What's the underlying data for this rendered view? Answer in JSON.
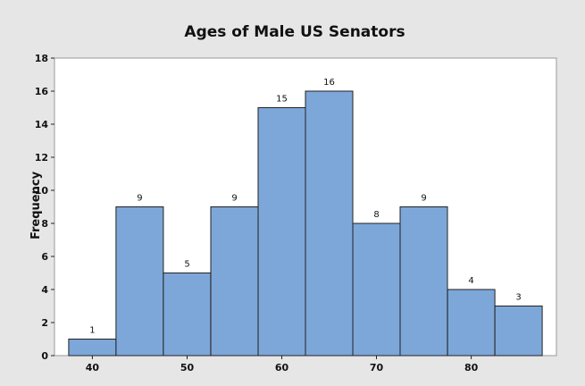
{
  "chart_data": {
    "type": "bar",
    "title": "Ages of Male US Senators",
    "xlabel": "",
    "ylabel": "Frequency",
    "bin_width": 5,
    "x": [
      40,
      45,
      50,
      55,
      60,
      65,
      70,
      75,
      80,
      85
    ],
    "values": [
      1,
      9,
      5,
      9,
      15,
      16,
      8,
      9,
      4,
      3
    ],
    "data_labels": [
      "1",
      "9",
      "5",
      "9",
      "15",
      "16",
      "8",
      "9",
      "4",
      "3"
    ],
    "xticks": [
      "40",
      "50",
      "60",
      "70",
      "80"
    ],
    "xtick_values": [
      40,
      50,
      60,
      70,
      80
    ],
    "yticks": [
      "0",
      "2",
      "4",
      "6",
      "8",
      "10",
      "12",
      "14",
      "16",
      "18"
    ],
    "ylim": [
      0,
      18
    ],
    "xlim": [
      36,
      89
    ],
    "grid": false,
    "colors": {
      "bar_fill": "#7da7d9",
      "bar_stroke": "#222222",
      "plot_bg": "#ffffff",
      "outer_bg": "#e6e6e6"
    }
  }
}
